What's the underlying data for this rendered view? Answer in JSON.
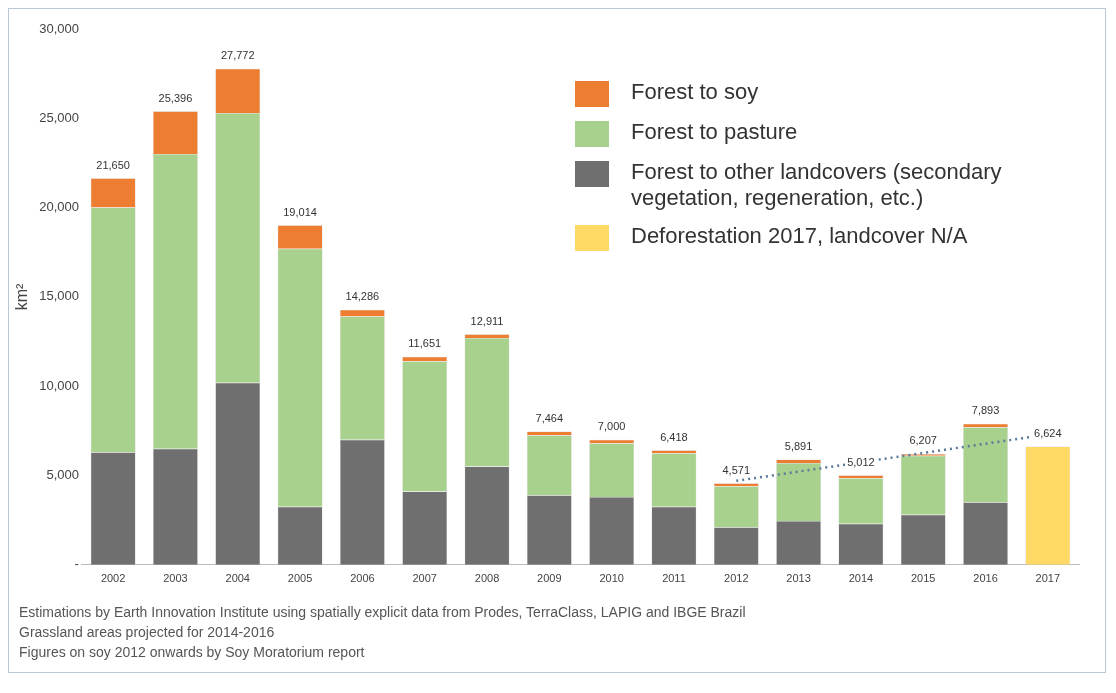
{
  "chart_data": {
    "type": "bar",
    "stacked": true,
    "ylabel": "km²",
    "categories": [
      "2002",
      "2003",
      "2004",
      "2005",
      "2006",
      "2007",
      "2008",
      "2009",
      "2010",
      "2011",
      "2012",
      "2013",
      "2014",
      "2015",
      "2016",
      "2017"
    ],
    "series": [
      {
        "name": "Forest to other landcovers (secondary vegetation, regeneration, etc.)",
        "color": "#6f6f6f",
        "values": [
          6300,
          6500,
          10200,
          3250,
          7000,
          4100,
          5500,
          3900,
          3800,
          3250,
          2100,
          2450,
          2300,
          2800,
          3500,
          null
        ]
      },
      {
        "name": "Forest to pasture",
        "color": "#a9d18e",
        "values": [
          13700,
          16500,
          15100,
          14450,
          6900,
          7300,
          7200,
          3350,
          3000,
          3000,
          2300,
          3250,
          2550,
          3300,
          4200,
          null
        ]
      },
      {
        "name": "Forest to soy",
        "color": "#ed7d31",
        "values": [
          1650,
          2396,
          2472,
          1314,
          386,
          251,
          211,
          214,
          200,
          168,
          171,
          191,
          162,
          107,
          193,
          null
        ]
      },
      {
        "name": "Deforestation 2017, landcover N/A",
        "color": "#ffd966",
        "values": [
          null,
          null,
          null,
          null,
          null,
          null,
          null,
          null,
          null,
          null,
          null,
          null,
          null,
          null,
          null,
          6624
        ]
      },
      {
        "type": "line",
        "values": [
          null,
          null,
          null,
          null,
          null,
          null,
          null,
          null,
          null,
          null,
          4700,
          null,
          null,
          null,
          null,
          7300
        ],
        "color": "#5a7a9a",
        "line_style": "dotted"
      }
    ],
    "totals": [
      "21,650",
      "25,396",
      "27,772",
      "19,014",
      "14,286",
      "11,651",
      "12,911",
      "7,464",
      "7,000",
      "6,418",
      "4,571",
      "5,891",
      "5,012",
      "6,207",
      "7,893",
      "6,624"
    ],
    "ylim": [
      0,
      30000
    ],
    "yticks": [
      {
        "value": 0,
        "label": "-"
      },
      {
        "value": 5000,
        "label": "5,000"
      },
      {
        "value": 10000,
        "label": "10,000"
      },
      {
        "value": 15000,
        "label": "15,000"
      },
      {
        "value": 20000,
        "label": "20,000"
      },
      {
        "value": 25000,
        "label": "25,000"
      },
      {
        "value": 30000,
        "label": "30,000"
      }
    ],
    "legend": "top right",
    "annotations": [
      "Estimations by Earth Innovation Institute using spatially explicit data from Prodes, TerraClass, LAPIG and IBGE Brazil",
      "Grassland areas projected for 2014-2016",
      "Figures on soy 2012 onwards by Soy Moratorium report"
    ]
  }
}
